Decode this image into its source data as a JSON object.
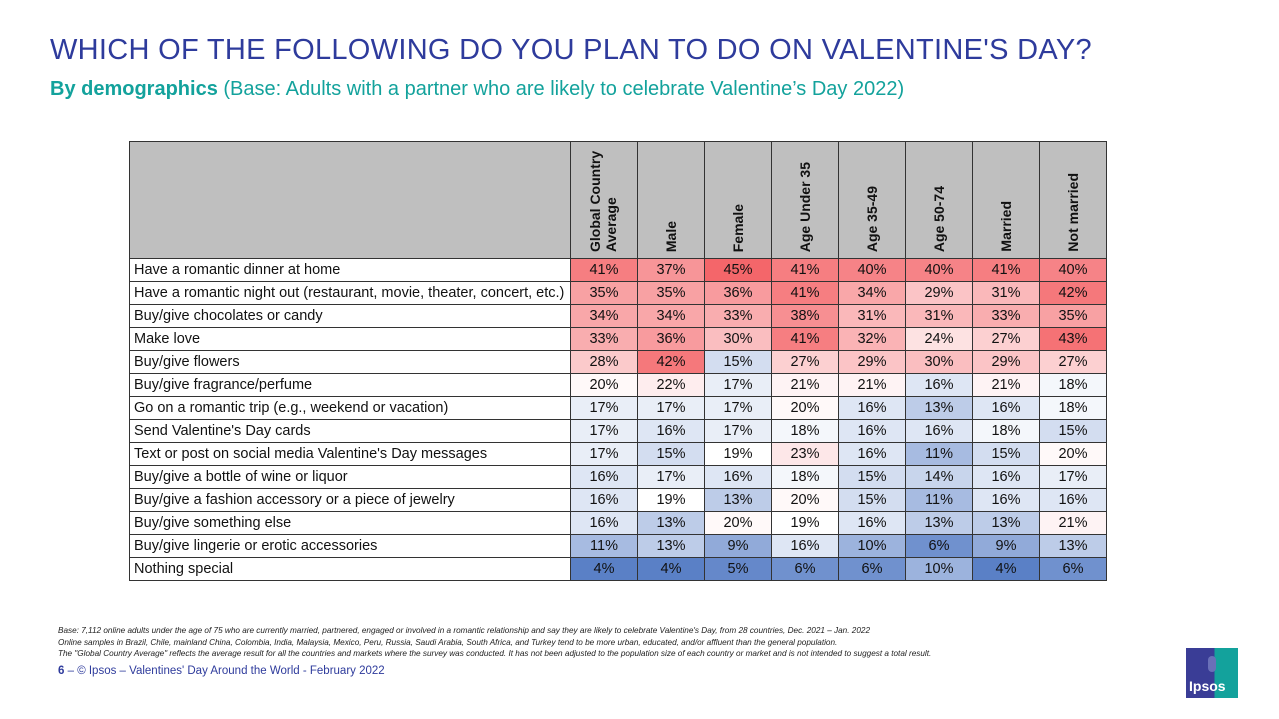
{
  "title": "WHICH OF THE FOLLOWING DO YOU PLAN TO DO ON VALENTINE'S DAY?",
  "subtitle_bold": "By demographics",
  "subtitle_rest": " (Base: Adults with a partner who are likely to celebrate Valentine’s Day 2022)",
  "chart_data": {
    "type": "table",
    "columns": [
      "Global Country Average",
      "Male",
      "Female",
      "Age Under 35",
      "Age 35-49",
      "Age 50-74",
      "Married",
      "Not married"
    ],
    "rows": [
      {
        "label": "Have a romantic dinner at home",
        "values": [
          41,
          37,
          45,
          41,
          40,
          40,
          41,
          40
        ]
      },
      {
        "label": "Have a romantic night out (restaurant, movie, theater, concert, etc.)",
        "values": [
          35,
          35,
          36,
          41,
          34,
          29,
          31,
          42
        ]
      },
      {
        "label": "Buy/give chocolates or candy",
        "values": [
          34,
          34,
          33,
          38,
          31,
          31,
          33,
          35
        ]
      },
      {
        "label": "Make love",
        "values": [
          33,
          36,
          30,
          41,
          32,
          24,
          27,
          43
        ]
      },
      {
        "label": "Buy/give flowers",
        "values": [
          28,
          42,
          15,
          27,
          29,
          30,
          29,
          27
        ]
      },
      {
        "label": "Buy/give fragrance/perfume",
        "values": [
          20,
          22,
          17,
          21,
          21,
          16,
          21,
          18
        ]
      },
      {
        "label": "Go on a romantic trip (e.g., weekend or vacation)",
        "values": [
          17,
          17,
          17,
          20,
          16,
          13,
          16,
          18
        ]
      },
      {
        "label": "Send Valentine's Day cards",
        "values": [
          17,
          16,
          17,
          18,
          16,
          16,
          18,
          15
        ]
      },
      {
        "label": "Text or post on social media Valentine's Day messages",
        "values": [
          17,
          15,
          19,
          23,
          16,
          11,
          15,
          20
        ]
      },
      {
        "label": "Buy/give a bottle of wine or liquor",
        "values": [
          16,
          17,
          16,
          18,
          15,
          14,
          16,
          17
        ]
      },
      {
        "label": "Buy/give a fashion accessory or a piece of jewelry",
        "values": [
          16,
          19,
          13,
          20,
          15,
          11,
          16,
          16
        ]
      },
      {
        "label": "Buy/give something else",
        "values": [
          16,
          13,
          20,
          19,
          16,
          13,
          13,
          21
        ]
      },
      {
        "label": "Buy/give lingerie or erotic accessories",
        "values": [
          11,
          13,
          9,
          16,
          10,
          6,
          9,
          13
        ]
      },
      {
        "label": "Nothing special",
        "values": [
          4,
          4,
          5,
          6,
          6,
          10,
          4,
          6
        ]
      }
    ],
    "unit": "%",
    "colors": {
      "high": "#f4666a",
      "mid": "#ffffff",
      "low": "#5a80c6"
    }
  },
  "footnotes": [
    "Base: 7,112 online adults under the age of 75 who are currently married, partnered, engaged or involved in a romantic relationship and say they are likely to celebrate Valentine's Day, from 28 countries, Dec. 2021 – Jan. 2022",
    "Online samples in Brazil, Chile, mainland China, Colombia, India, Malaysia, Mexico, Peru, Russia, Saudi Arabia, South Africa, and Turkey tend to be more urban, educated, and/or affluent than the general population.",
    "The \"Global Country Average\" reflects the average result for all the countries and markets where the survey was conducted. It has not been adjusted to the population size of each country or market and is not intended to suggest a total result."
  ],
  "page_number": "6",
  "footer": " – © Ipsos – Valentines' Day Around the World - February 2022",
  "logo_text": "Ipsos"
}
